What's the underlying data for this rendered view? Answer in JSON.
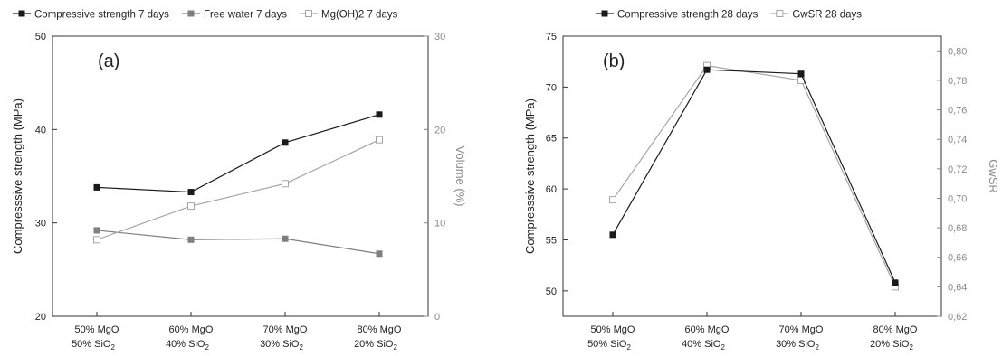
{
  "chart_data": [
    {
      "type": "line",
      "panel_label": "(a)",
      "categories": [
        [
          "50% MgO",
          "50% SiO",
          "2"
        ],
        [
          "60% MgO",
          "40% SiO",
          "2"
        ],
        [
          "70% MgO",
          "30% SiO",
          "2"
        ],
        [
          "80% MgO",
          "20% SiO",
          "2"
        ]
      ],
      "ylabel": "Compresssive strength (MPa)",
      "ylim": [
        20,
        50
      ],
      "yticks": [
        "20",
        "30",
        "40",
        "50"
      ],
      "y2label": "Volume (%)",
      "y2lim": [
        0,
        30
      ],
      "y2ticks": [
        "0",
        "10",
        "20",
        "30"
      ],
      "legend_position": "top",
      "series": [
        {
          "name": "Compressive strength 7 days",
          "axis": "left",
          "values": [
            33.8,
            33.3,
            38.6,
            41.6
          ],
          "color": "#1a1a1a",
          "marker": "filled-square"
        },
        {
          "name": "Free water 7 days",
          "axis": "right",
          "values": [
            9.2,
            8.2,
            8.3,
            6.7
          ],
          "color": "#7f7f7f",
          "marker": "filled-square"
        },
        {
          "name": "Mg(OH)2  7 days",
          "axis": "right",
          "values": [
            8.2,
            11.8,
            14.2,
            18.9
          ],
          "color": "#a6a6a6",
          "marker": "open-square"
        }
      ]
    },
    {
      "type": "line",
      "panel_label": "(b)",
      "categories": [
        [
          "50% MgO",
          "50% SiO",
          "2"
        ],
        [
          "60% MgO",
          "40% SiO",
          "2"
        ],
        [
          "70% MgO",
          "30% SiO",
          "2"
        ],
        [
          "80% MgO",
          "20% SiO",
          "2"
        ]
      ],
      "ylabel": "Compresssive strength (MPa)",
      "ylim": [
        47.5,
        75
      ],
      "yticks": [
        "50",
        "55",
        "60",
        "65",
        "70",
        "75"
      ],
      "y2label": "GwSR",
      "y2lim": [
        0.62,
        0.81
      ],
      "y2ticks": [
        "0,62",
        "0,64",
        "0,66",
        "0,68",
        "0,70",
        "0,72",
        "0,74",
        "0,76",
        "0,78",
        "0,80"
      ],
      "legend_position": "top",
      "series": [
        {
          "name": "Compressive strength 28 days",
          "axis": "left",
          "values": [
            55.5,
            71.7,
            71.3,
            50.8
          ],
          "color": "#1a1a1a",
          "marker": "filled-square"
        },
        {
          "name": "GwSR 28 days",
          "axis": "right",
          "values": [
            0.699,
            0.79,
            0.78,
            0.64
          ],
          "color": "#a6a6a6",
          "marker": "open-square"
        }
      ]
    }
  ]
}
